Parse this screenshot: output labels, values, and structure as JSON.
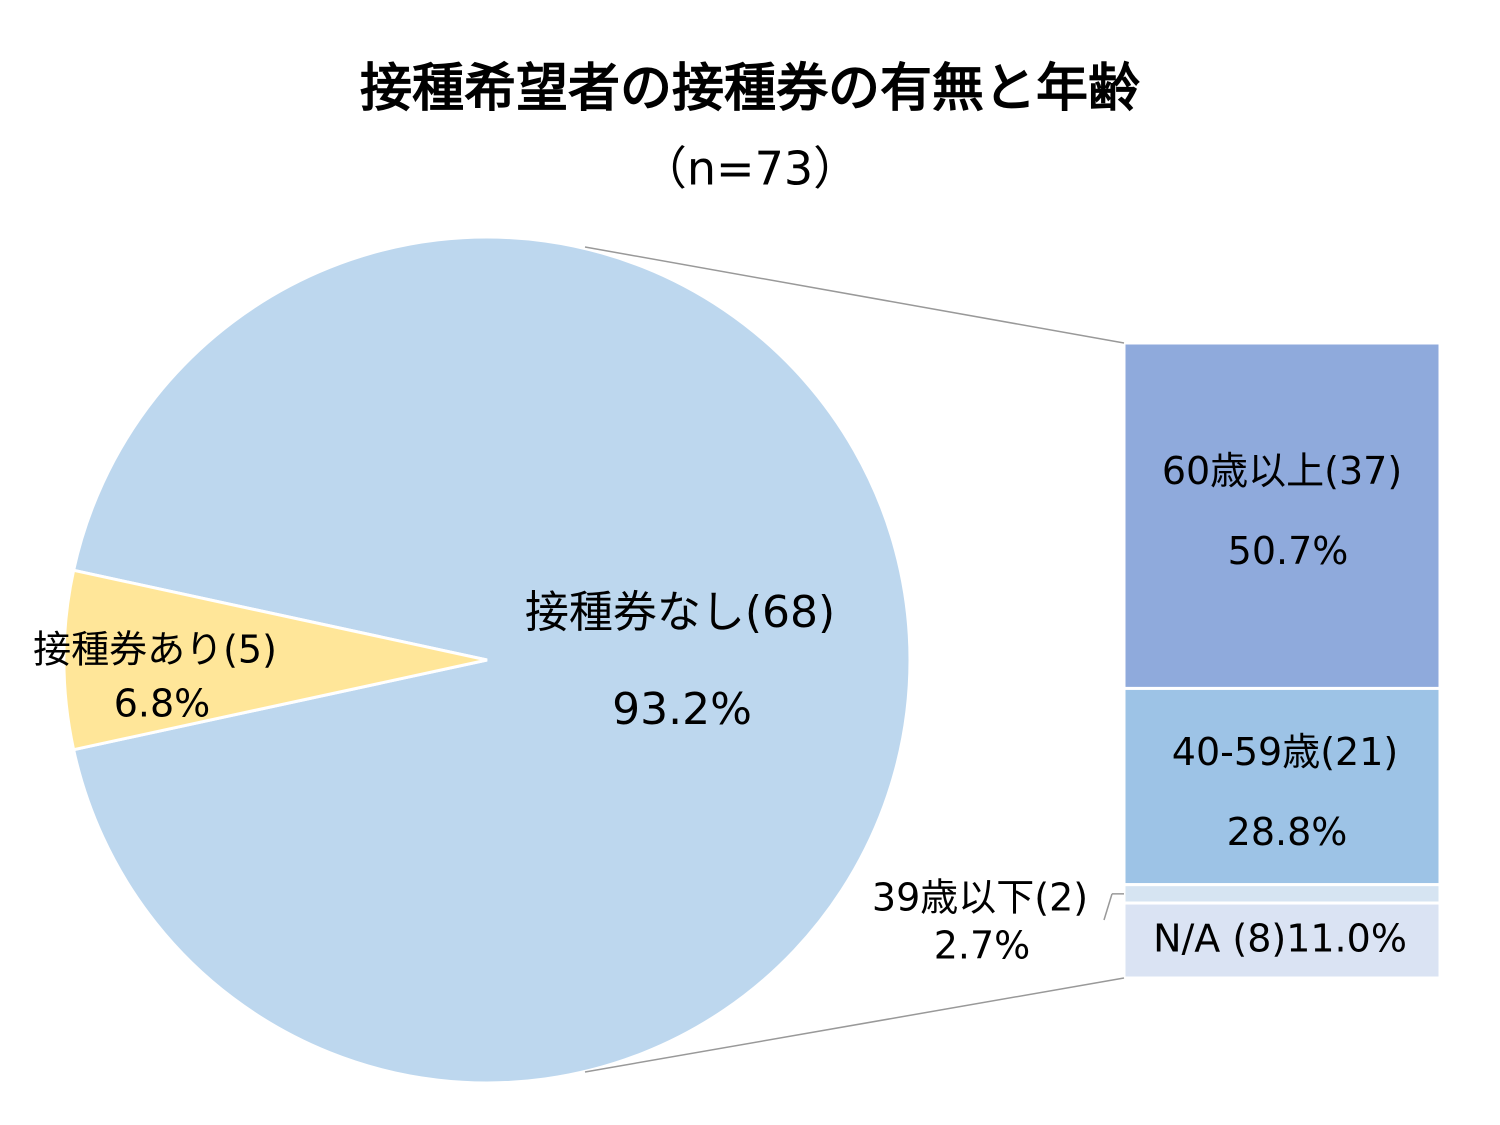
{
  "chart_data": {
    "type": "pie",
    "title": "接種希望者の接種券の有無と年齢",
    "subtitle": "（n=73）",
    "categories": [
      "接種券なし(68)",
      "接種券あり(5)"
    ],
    "values": [
      93.2,
      6.8
    ],
    "value_labels": [
      "93.2%",
      "6.8%"
    ],
    "colors": [
      "#bdd7ee",
      "#ffe699"
    ],
    "breakdown": {
      "type": "bar",
      "categories": [
        "60歳以上(37)",
        "40-59歳(21)",
        "39歳以下(2)",
        "N/A (8)"
      ],
      "values": [
        50.7,
        28.8,
        2.7,
        11.0
      ],
      "value_labels": [
        "50.7%",
        "28.8%",
        "2.7%",
        "11.0%"
      ],
      "colors": [
        "#8faadc",
        "#9dc3e6",
        "#d6e4f2",
        "#dae3f3"
      ]
    }
  }
}
